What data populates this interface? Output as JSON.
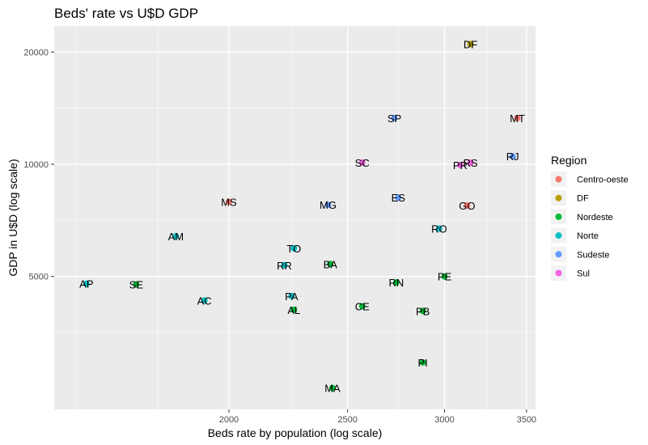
{
  "chart_data": {
    "type": "scatter",
    "title": "Beds' rate vs U$D GDP",
    "xlabel": "Beds rate by population (log scale)",
    "ylabel": "GDP in U$D (log scale)",
    "x_scale": "log",
    "y_scale": "log",
    "xlim": [
      1440,
      3560
    ],
    "ylim": [
      2200,
      23500
    ],
    "x_ticks": [
      2000,
      2500,
      3000,
      3500
    ],
    "y_ticks": [
      5000,
      10000,
      20000
    ],
    "x_minor_ticks": [
      1500,
      1750,
      2250,
      2750,
      3250
    ],
    "y_minor_ticks": [
      3540,
      7070,
      14140
    ],
    "grid": true,
    "legend": {
      "title": "Region",
      "position": "right",
      "entries": [
        {
          "name": "Centro-oeste",
          "color": "#F8766D"
        },
        {
          "name": "DF",
          "color": "#B79F00"
        },
        {
          "name": "Nordeste",
          "color": "#00BA38"
        },
        {
          "name": "Norte",
          "color": "#00BFC4"
        },
        {
          "name": "Sudeste",
          "color": "#619CFF"
        },
        {
          "name": "Sul",
          "color": "#F564E3"
        }
      ]
    },
    "points": [
      {
        "label": "DF",
        "region": "DF",
        "x": 3150,
        "y": 21000
      },
      {
        "label": "SP",
        "region": "Sudeste",
        "x": 2730,
        "y": 13300
      },
      {
        "label": "MT",
        "region": "Centro-oeste",
        "x": 3440,
        "y": 13300
      },
      {
        "label": "RJ",
        "region": "Sudeste",
        "x": 3410,
        "y": 10500
      },
      {
        "label": "SC",
        "region": "Sul",
        "x": 2570,
        "y": 10100
      },
      {
        "label": "RS",
        "region": "Sul",
        "x": 3150,
        "y": 10100
      },
      {
        "label": "PR",
        "region": "Sul",
        "x": 3090,
        "y": 9950
      },
      {
        "label": "MS",
        "region": "Centro-oeste",
        "x": 2000,
        "y": 7930
      },
      {
        "label": "MG",
        "region": "Sudeste",
        "x": 2410,
        "y": 7780
      },
      {
        "label": "ES",
        "region": "Sudeste",
        "x": 2750,
        "y": 8140
      },
      {
        "label": "GO",
        "region": "Centro-oeste",
        "x": 3130,
        "y": 7750
      },
      {
        "label": "RO",
        "region": "Norte",
        "x": 2970,
        "y": 6720
      },
      {
        "label": "AM",
        "region": "Norte",
        "x": 1810,
        "y": 6410
      },
      {
        "label": "TO",
        "region": "Norte",
        "x": 2260,
        "y": 5950
      },
      {
        "label": "RR",
        "region": "Norte",
        "x": 2220,
        "y": 5360
      },
      {
        "label": "BA",
        "region": "Nordeste",
        "x": 2420,
        "y": 5400
      },
      {
        "label": "PE",
        "region": "Nordeste",
        "x": 3000,
        "y": 5000
      },
      {
        "label": "AP",
        "region": "Norte",
        "x": 1530,
        "y": 4780
      },
      {
        "label": "SE",
        "region": "Nordeste",
        "x": 1680,
        "y": 4760
      },
      {
        "label": "RN",
        "region": "Nordeste",
        "x": 2740,
        "y": 4820
      },
      {
        "label": "PA",
        "region": "Norte",
        "x": 2250,
        "y": 4430
      },
      {
        "label": "AC",
        "region": "Norte",
        "x": 1910,
        "y": 4310
      },
      {
        "label": "CE",
        "region": "Nordeste",
        "x": 2570,
        "y": 4160
      },
      {
        "label": "AL",
        "region": "Nordeste",
        "x": 2260,
        "y": 4070
      },
      {
        "label": "PB",
        "region": "Nordeste",
        "x": 2880,
        "y": 4040
      },
      {
        "label": "PI",
        "region": "Nordeste",
        "x": 2880,
        "y": 2940
      },
      {
        "label": "MA",
        "region": "Nordeste",
        "x": 2430,
        "y": 2510
      }
    ]
  }
}
